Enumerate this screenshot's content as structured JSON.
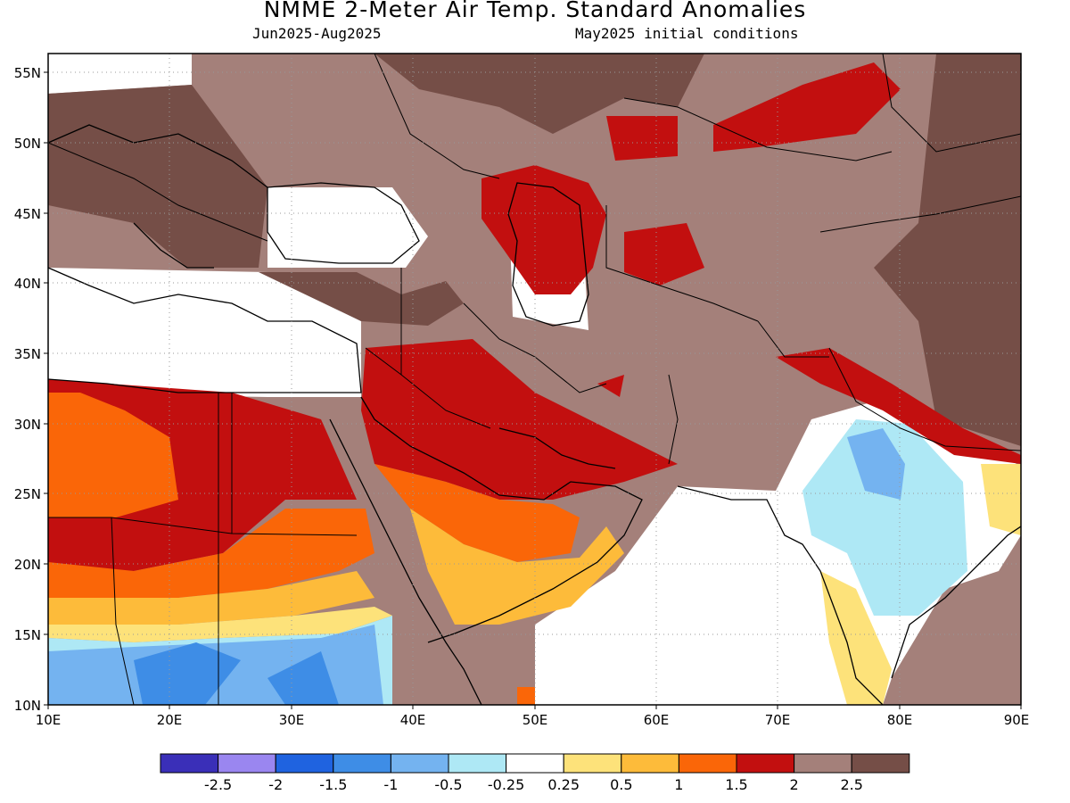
{
  "header": {
    "title": "NMME 2-Meter Air Temp. Standard Anomalies",
    "period": "Jun2025-Aug2025",
    "init": "May2025 initial conditions"
  },
  "map": {
    "lon_range": [
      10,
      90
    ],
    "lat_range": [
      10,
      56.5
    ],
    "lon_ticks": [
      "10E",
      "20E",
      "30E",
      "40E",
      "50E",
      "60E",
      "70E",
      "80E",
      "90E"
    ],
    "lat_ticks": [
      "10N",
      "15N",
      "20N",
      "25N",
      "30N",
      "35N",
      "40N",
      "45N",
      "50N",
      "55N"
    ],
    "gridlines": "dotted"
  },
  "colorbar": {
    "colors": [
      "#3a2fb8",
      "#9a86f0",
      "#1f63e0",
      "#3e8de6",
      "#74b3f0",
      "#aee8f5",
      "#ffffff",
      "#fde27a",
      "#fdbb3a",
      "#fa6608",
      "#c20f0f",
      "#a4807a",
      "#754e47"
    ],
    "labels": [
      "-2.5",
      "-2",
      "-1.5",
      "-1",
      "-0.5",
      "-0.25",
      "0.25",
      "0.5",
      "1",
      "1.5",
      "2",
      "2.5"
    ]
  }
}
